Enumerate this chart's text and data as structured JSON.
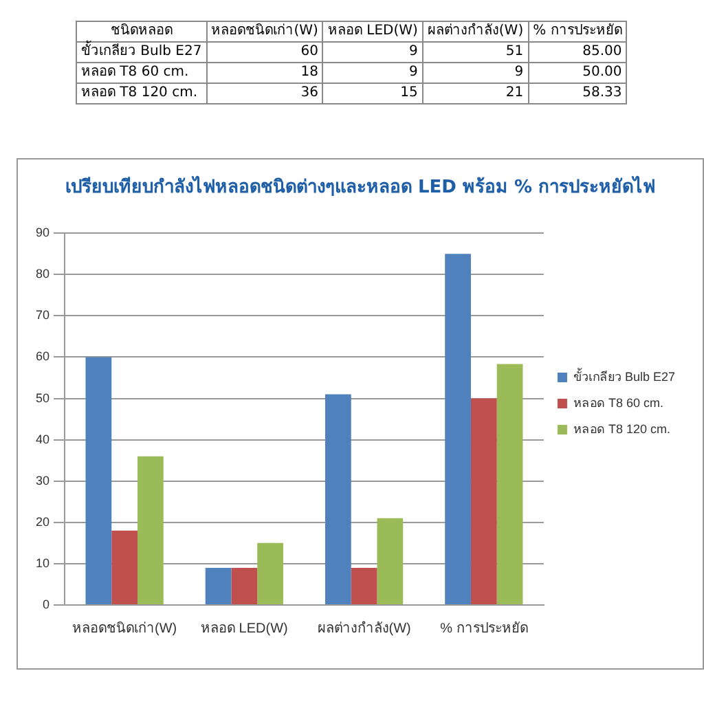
{
  "chart_data": [
    {
      "type": "other",
      "annotations": [
        "ชนิดหลอด",
        "หลอดชนิดเก่า(W)",
        "หลอด LED(W)",
        "ผลต่างกำลัง(W)",
        "% การประหยัด",
        "ขั้วเกลียว Bulb E27",
        "60",
        "9",
        "51",
        "85.00",
        "หลอด T8 60 cm.",
        "18",
        "9",
        "9",
        "50.00",
        "หลอด T8 120 cm.",
        "36",
        "15",
        "21",
        "58.33"
      ]
    },
    {
      "type": "bar",
      "title": "เปรียบเทียบกำลังไฟหลอดชนิดต่างๆและหลอด LED พร้อม % การประหยัดไฟ",
      "categories": [
        "หลอดชนิดเก่า(W)",
        "หลอด LED(W)",
        "ผลต่างกำลัง(W)",
        "% การประหยัด"
      ],
      "series": [
        {
          "name": "ขั้วเกลียว Bulb E27",
          "color": "#4f81bd",
          "values": [
            60,
            9,
            51,
            85
          ]
        },
        {
          "name": "หลอด T8 60 cm.",
          "color": "#c0504d",
          "values": [
            18,
            9,
            9,
            50
          ]
        },
        {
          "name": "หลอด T8 120 cm.",
          "color": "#9bbb59",
          "values": [
            36,
            15,
            21,
            58.33
          ]
        }
      ],
      "ylim": [
        0,
        90
      ],
      "yticks": [
        0,
        10,
        20,
        30,
        40,
        50,
        60,
        70,
        80,
        90
      ],
      "grid": "y",
      "legend": "right"
    }
  ]
}
